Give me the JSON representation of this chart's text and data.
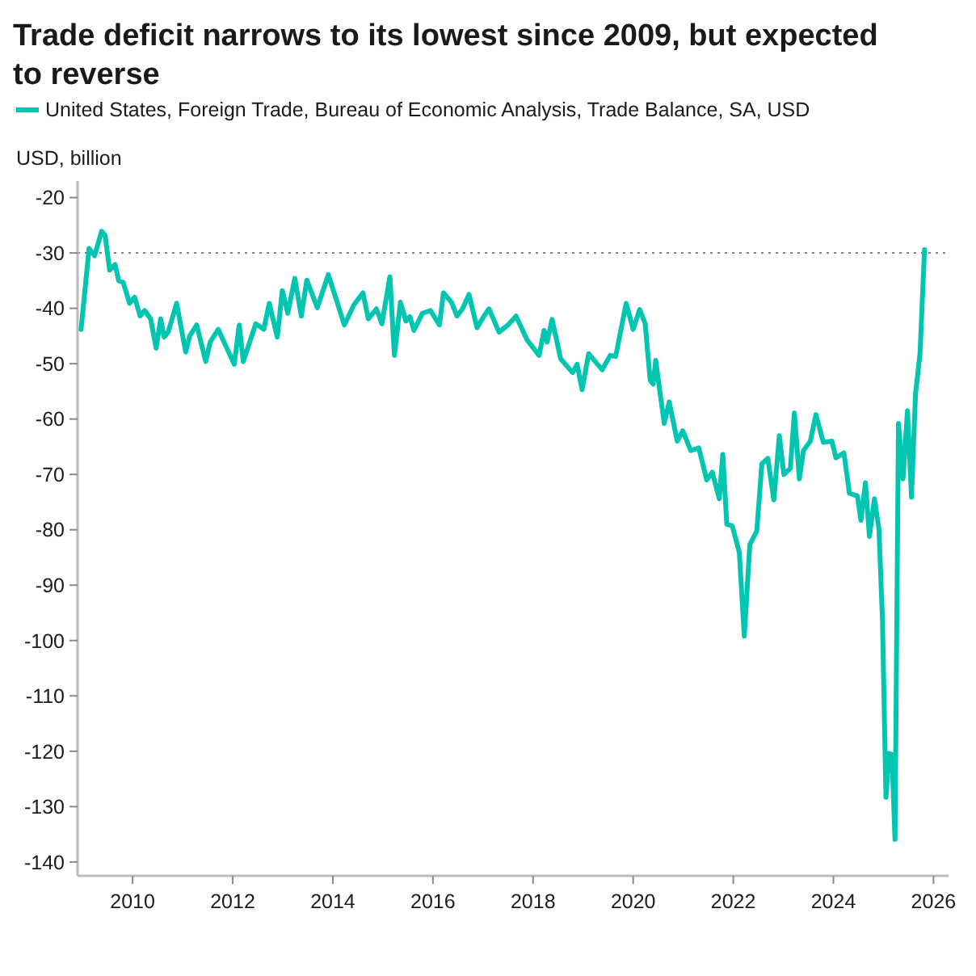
{
  "chart_data": {
    "type": "line",
    "title": "Trade deficit narrows to its lowest since 2009, but expected to reverse",
    "ylabel": "USD, billion",
    "xlim": [
      2008.9,
      2026.3
    ],
    "xticks": [
      2010,
      2012,
      2014,
      2016,
      2018,
      2020,
      2022,
      2024,
      2026
    ],
    "ylim": [
      -142.5,
      -17
    ],
    "yticks": [
      -20,
      -30,
      -40,
      -50,
      -60,
      -70,
      -80,
      -90,
      -100,
      -110,
      -120,
      -130,
      -140
    ],
    "legend": "top left",
    "grid": false,
    "ref_lines": [
      {
        "axis": "y",
        "value": -30,
        "color": "#808080",
        "line_style": "dotted"
      }
    ],
    "series": [
      {
        "name": "United States, Foreign Trade, Bureau of Economic Analysis, Trade Balance, SA, USD",
        "color": "#00c5b0",
        "x": [
          2008.97,
          2009.13,
          2009.24,
          2009.38,
          2009.45,
          2009.54,
          2009.65,
          2009.72,
          2009.81,
          2009.94,
          2010.04,
          2010.15,
          2010.24,
          2010.36,
          2010.47,
          2010.56,
          2010.63,
          2010.71,
          2010.88,
          2011.06,
          2011.14,
          2011.28,
          2011.46,
          2011.55,
          2011.71,
          2012.03,
          2012.13,
          2012.21,
          2012.46,
          2012.62,
          2012.73,
          2012.89,
          2012.99,
          2013.1,
          2013.24,
          2013.37,
          2013.48,
          2013.69,
          2013.91,
          2014.23,
          2014.42,
          2014.6,
          2014.71,
          2014.87,
          2014.98,
          2015.14,
          2015.23,
          2015.35,
          2015.46,
          2015.54,
          2015.62,
          2015.79,
          2015.95,
          2016.13,
          2016.21,
          2016.37,
          2016.48,
          2016.59,
          2016.72,
          2016.88,
          2017.02,
          2017.12,
          2017.32,
          2017.5,
          2017.66,
          2017.88,
          2018.12,
          2018.22,
          2018.28,
          2018.38,
          2018.55,
          2018.79,
          2018.88,
          2018.98,
          2019.11,
          2019.38,
          2019.54,
          2019.65,
          2019.86,
          2020.0,
          2020.13,
          2020.24,
          2020.34,
          2020.4,
          2020.45,
          2020.62,
          2020.72,
          2020.88,
          2020.99,
          2021.15,
          2021.31,
          2021.47,
          2021.58,
          2021.72,
          2021.79,
          2021.87,
          2021.98,
          2022.12,
          2022.22,
          2022.33,
          2022.47,
          2022.57,
          2022.69,
          2022.81,
          2022.92,
          2023.01,
          2023.14,
          2023.22,
          2023.32,
          2023.4,
          2023.54,
          2023.65,
          2023.8,
          2023.97,
          2024.05,
          2024.21,
          2024.32,
          2024.48,
          2024.55,
          2024.64,
          2024.72,
          2024.82,
          2024.91,
          2024.98,
          2025.05,
          2025.11,
          2025.17,
          2025.23,
          2025.3,
          2025.39,
          2025.48,
          2025.56,
          2025.64,
          2025.73,
          2025.82
        ],
        "values": [
          -43.8,
          -29.2,
          -30.5,
          -26.1,
          -26.8,
          -33.1,
          -32.1,
          -35,
          -35.3,
          -39.1,
          -38,
          -41.4,
          -40.4,
          -41.9,
          -47.2,
          -41.9,
          -45.2,
          -44.3,
          -39.1,
          -47.9,
          -45,
          -43,
          -49.6,
          -46.1,
          -43.8,
          -50.1,
          -43,
          -49.6,
          -42.8,
          -43.8,
          -39.1,
          -45.2,
          -36.8,
          -40.9,
          -34.6,
          -41.4,
          -34.9,
          -39.9,
          -33.9,
          -43,
          -39.4,
          -37.2,
          -41.9,
          -40.1,
          -42.8,
          -34.3,
          -48.5,
          -38.9,
          -42.3,
          -41.5,
          -44,
          -40.9,
          -40.4,
          -43,
          -37.2,
          -38.9,
          -41.4,
          -40.1,
          -37.5,
          -43.5,
          -41.4,
          -40.1,
          -44.3,
          -43,
          -41.4,
          -45.7,
          -48.5,
          -44,
          -46.1,
          -42,
          -49.1,
          -51.6,
          -50.1,
          -54.7,
          -48.2,
          -51.1,
          -48.5,
          -48.7,
          -39.1,
          -43.8,
          -40.2,
          -42.8,
          -53,
          -53.7,
          -49.4,
          -60.8,
          -56.9,
          -64,
          -62.1,
          -65.7,
          -65.2,
          -71,
          -69.6,
          -74.4,
          -66.4,
          -79,
          -79.3,
          -84.1,
          -99.2,
          -82.7,
          -80.2,
          -68.1,
          -67.1,
          -74.6,
          -63,
          -70,
          -68.9,
          -58.9,
          -70.8,
          -65.7,
          -64,
          -59.2,
          -64.2,
          -64,
          -67,
          -66.1,
          -73.4,
          -73.9,
          -78.3,
          -71.5,
          -81.2,
          -74.4,
          -79.8,
          -96.3,
          -128.3,
          -120.4,
          -120.6,
          -135.9,
          -60.8,
          -70.8,
          -58.5,
          -74.1,
          -55.5,
          -48.2,
          -29.4
        ]
      }
    ]
  }
}
